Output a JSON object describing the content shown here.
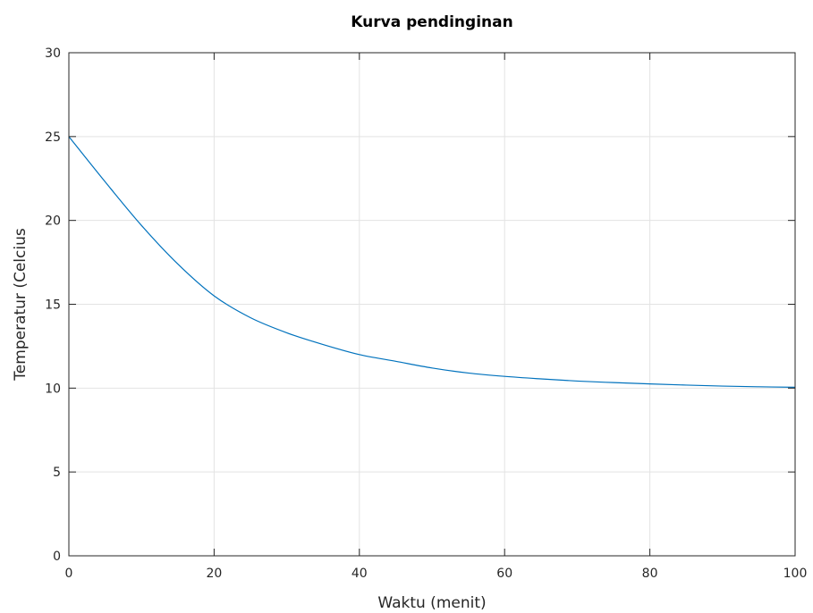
{
  "chart_data": {
    "type": "line",
    "title": "Kurva pendinginan",
    "xlabel": "Waktu (menit)",
    "ylabel": "Temperatur (Celcius",
    "xlim": [
      0,
      100
    ],
    "ylim": [
      0,
      30
    ],
    "xticks": [
      0,
      20,
      40,
      60,
      80,
      100
    ],
    "yticks": [
      0,
      5,
      10,
      15,
      20,
      25,
      30
    ],
    "xtick_labels": [
      "0",
      "20",
      "40",
      "60",
      "80",
      "100"
    ],
    "ytick_labels": [
      "0",
      "5",
      "10",
      "15",
      "20",
      "25",
      "30"
    ],
    "grid": true,
    "series": [
      {
        "color": "#0072bd",
        "x": [
          0,
          5,
          10,
          15,
          20,
          25,
          30,
          35,
          40,
          45,
          50,
          55,
          60,
          65,
          70,
          75,
          80,
          85,
          90,
          95,
          100
        ],
        "y": [
          25.0,
          22.3,
          19.7,
          17.4,
          15.5,
          14.2,
          13.3,
          12.6,
          12.0,
          11.6,
          11.2,
          10.9,
          10.7,
          10.55,
          10.42,
          10.33,
          10.25,
          10.18,
          10.12,
          10.08,
          10.05
        ]
      }
    ]
  }
}
